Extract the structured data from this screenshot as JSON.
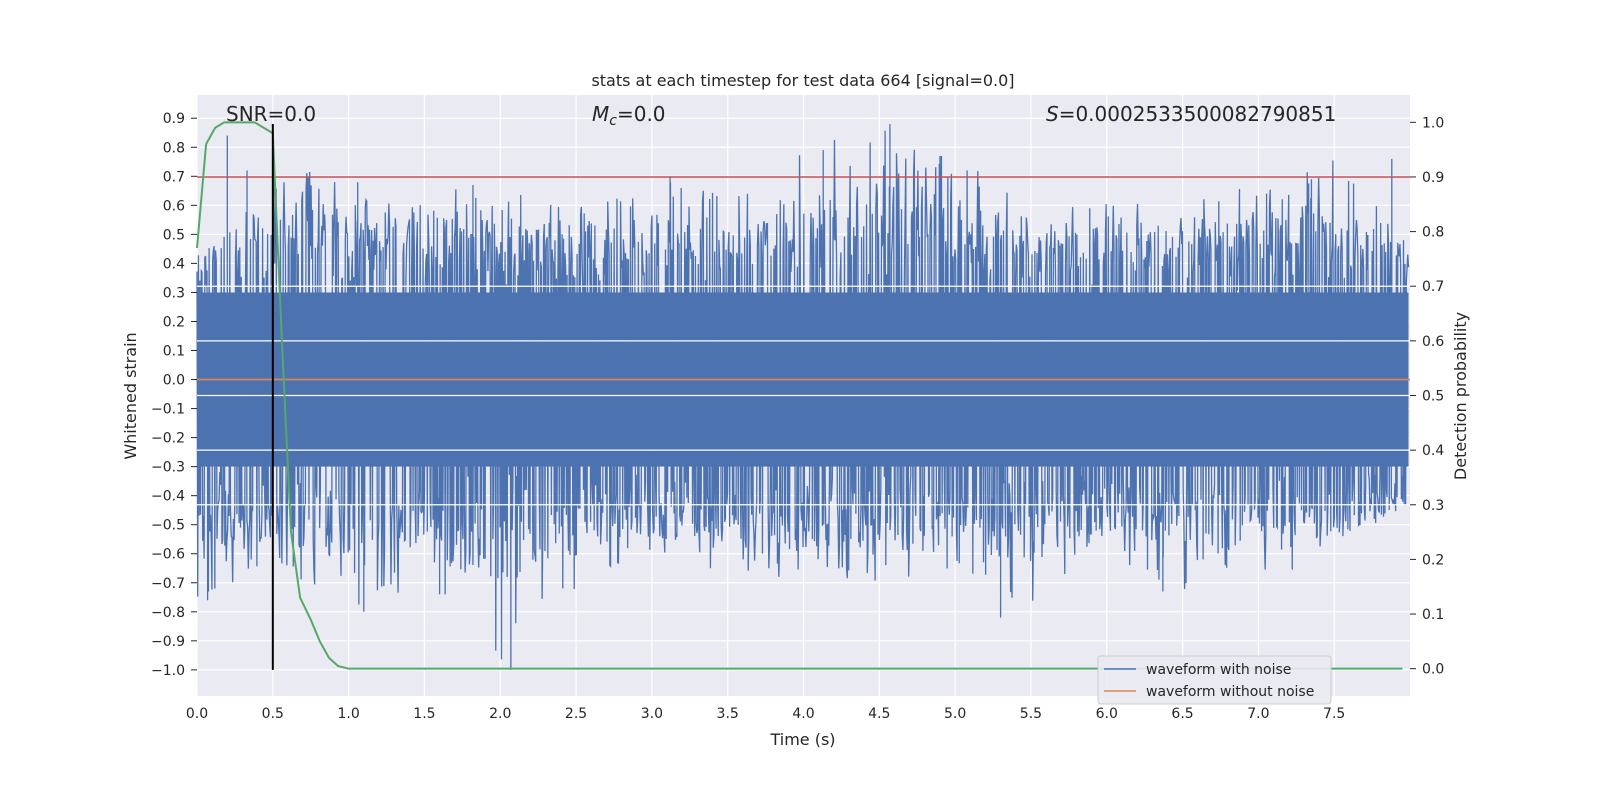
{
  "chart_data": {
    "type": "line",
    "title": "stats at each timestep for test data 664 [signal=0.0]",
    "xlabel": "Time (s)",
    "ylabel": "Whitened strain",
    "y2label": "Detection probability",
    "xlim": [
      0.0,
      8.0
    ],
    "ylim": [
      -1.09,
      0.98
    ],
    "y2lim": [
      -0.05,
      1.05
    ],
    "xticks": [
      "0.0",
      "0.5",
      "1.0",
      "1.5",
      "2.0",
      "2.5",
      "3.0",
      "3.5",
      "4.0",
      "4.5",
      "5.0",
      "5.5",
      "6.0",
      "6.5",
      "7.0",
      "7.5"
    ],
    "yticks": [
      "0.9",
      "0.8",
      "0.7",
      "0.6",
      "0.5",
      "0.4",
      "0.3",
      "0.2",
      "0.1",
      "0.0",
      "−0.1",
      "−0.2",
      "−0.3",
      "−0.4",
      "−0.5",
      "−0.6",
      "−0.7",
      "−0.8",
      "−0.9",
      "−1.0"
    ],
    "y2ticks": [
      "1.0",
      "0.9",
      "0.8",
      "0.7",
      "0.6",
      "0.5",
      "0.4",
      "0.3",
      "0.2",
      "0.1",
      "0.0"
    ],
    "grid": true,
    "annotations": {
      "snr": "SNR=0.0",
      "mc_symbol": "M",
      "mc_sub": "c",
      "mc_value": "=0.0",
      "s_symbol": "S",
      "s_value": "=0.0002533500082790851"
    },
    "legend": {
      "placement": "lower-right",
      "entries": [
        "waveform with noise",
        "waveform without noise"
      ]
    },
    "series": [
      {
        "name": "waveform with noise",
        "color": "#4c72b0",
        "note_envelope_x": [
          0.0,
          0.5,
          1.0,
          1.5,
          2.0,
          2.5,
          3.0,
          3.5,
          4.0,
          4.5,
          5.0,
          5.5,
          6.0,
          6.5,
          7.0,
          7.5,
          7.95
        ],
        "upper_envelope": [
          0.42,
          0.84,
          0.68,
          0.66,
          0.67,
          0.6,
          0.7,
          0.63,
          0.79,
          0.88,
          0.77,
          0.6,
          0.62,
          0.6,
          0.68,
          0.76,
          0.51
        ],
        "lower_envelope": [
          -0.76,
          -0.63,
          -0.8,
          -0.74,
          -1.0,
          -0.73,
          -0.63,
          -0.67,
          -0.7,
          -0.74,
          -0.66,
          -0.82,
          -0.6,
          -0.73,
          -0.67,
          -0.64,
          -0.45
        ],
        "peaks": [
          {
            "x": 0.2,
            "y": 0.84
          },
          {
            "x": 0.33,
            "y": 0.72
          },
          {
            "x": 1.06,
            "y": 0.68
          },
          {
            "x": 1.82,
            "y": 0.67
          },
          {
            "x": 3.12,
            "y": 0.7
          },
          {
            "x": 4.13,
            "y": 0.79
          },
          {
            "x": 4.57,
            "y": 0.88
          },
          {
            "x": 4.9,
            "y": 0.77
          },
          {
            "x": 7.35,
            "y": 0.69
          },
          {
            "x": 7.88,
            "y": 0.76
          },
          {
            "x": 0.07,
            "y": -0.76
          },
          {
            "x": 1.1,
            "y": -0.8
          },
          {
            "x": 2.07,
            "y": -1.0
          },
          {
            "x": 5.3,
            "y": -0.82
          },
          {
            "x": 6.37,
            "y": -0.73
          },
          {
            "x": 1.6,
            "y": -0.74
          }
        ]
      },
      {
        "name": "waveform without noise",
        "color": "#dd8452",
        "x": [
          0.0,
          8.0
        ],
        "y": [
          0.0,
          0.0
        ]
      },
      {
        "name": "",
        "axis": "right",
        "color": "#55a868",
        "x": [
          0.0,
          0.06,
          0.12,
          0.18,
          0.25,
          0.3,
          0.38,
          0.44,
          0.5,
          0.56,
          0.62,
          0.68,
          0.75,
          0.81,
          0.87,
          0.93,
          1.0,
          2.0,
          3.0,
          4.0,
          5.0,
          6.0,
          7.0,
          7.95
        ],
        "y": [
          0.77,
          0.96,
          0.99,
          1.0,
          1.0,
          1.0,
          1.0,
          0.99,
          0.98,
          0.6,
          0.25,
          0.13,
          0.09,
          0.05,
          0.02,
          0.005,
          0.0,
          0.0,
          0.0,
          0.0,
          0.0,
          0.0,
          0.0,
          0.0
        ]
      }
    ],
    "threshold_line": {
      "axis": "right",
      "y": 0.9,
      "color": "#c44e52"
    },
    "marker_line": {
      "x": 0.5,
      "y_from": -1.0,
      "y_to": 0.88,
      "color": "#000000"
    }
  }
}
